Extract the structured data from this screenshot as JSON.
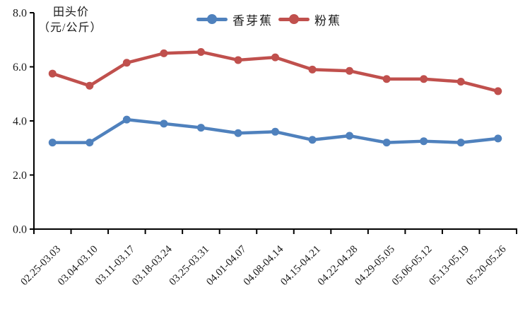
{
  "chart": {
    "y_axis_title_line1": "田头价",
    "y_axis_title_line2": "（元/公斤）"
  },
  "chart_data": {
    "type": "line",
    "title": "",
    "ylabel": "田头价（元/公斤）",
    "xlabel": "",
    "ylim": [
      0,
      8
    ],
    "yticks": [
      "0.0",
      "2.0",
      "4.0",
      "6.0",
      "8.0"
    ],
    "grid": false,
    "legend_position": "top-center",
    "axis_color": "#000000",
    "text_color": "#1a1a1a",
    "categories": [
      "02.25-03.03",
      "03.04-03.10",
      "03.11-03.17",
      "03.18-03.24",
      "03.25-03.31",
      "04.01-04.07",
      "04.08-04.14",
      "04.15-04.21",
      "04.22-04.28",
      "04.29-05.05",
      "05.06-05.12",
      "05.13-05.19",
      "05.20-05.26"
    ],
    "series": [
      {
        "name": "香芽蕉",
        "color": "#4F81BD",
        "values": [
          3.2,
          3.2,
          4.05,
          3.9,
          3.75,
          3.55,
          3.6,
          3.3,
          3.45,
          3.2,
          3.25,
          3.2,
          3.35
        ]
      },
      {
        "name": "粉蕉",
        "color": "#C0504D",
        "values": [
          5.75,
          5.3,
          6.15,
          6.5,
          6.55,
          6.25,
          6.35,
          5.9,
          5.85,
          5.55,
          5.55,
          5.45,
          5.1
        ]
      }
    ]
  }
}
